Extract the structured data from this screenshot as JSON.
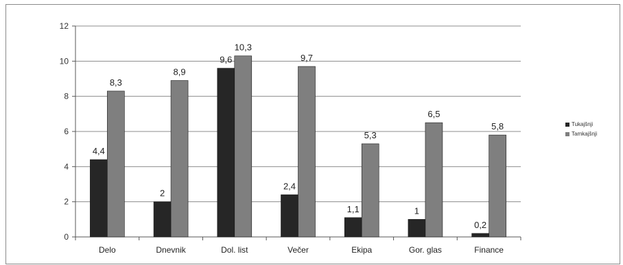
{
  "chart_data": {
    "type": "bar",
    "categories": [
      "Delo",
      "Dnevnik",
      "Dol. list",
      "Večer",
      "Ekipa",
      "Gor. glas",
      "Finance"
    ],
    "series": [
      {
        "name": "Tukajšnji",
        "values": [
          4.4,
          2,
          9.6,
          2.4,
          1.1,
          1,
          0.2
        ],
        "labels": [
          "4,4",
          "2",
          "9,6",
          "2,4",
          "1,1",
          "1",
          "0,2"
        ],
        "color": "#262626"
      },
      {
        "name": "Tamkajšnji",
        "values": [
          8.3,
          8.9,
          10.3,
          9.7,
          5.3,
          6.5,
          5.8
        ],
        "labels": [
          "8,3",
          "8,9",
          "10,3",
          "9,7",
          "5,3",
          "6,5",
          "5,8"
        ],
        "color": "#7f7f7f"
      }
    ],
    "yticks": [
      0,
      2,
      4,
      6,
      8,
      10,
      12
    ],
    "ylim": [
      0,
      12
    ],
    "grid": true,
    "legend_position": "right",
    "title": "",
    "xlabel": "",
    "ylabel": ""
  }
}
